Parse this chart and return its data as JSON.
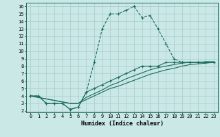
{
  "xlabel": "Humidex (Indice chaleur)",
  "xlim": [
    -0.5,
    23.5
  ],
  "ylim": [
    1.8,
    16.5
  ],
  "xticks": [
    0,
    1,
    2,
    3,
    4,
    5,
    6,
    7,
    8,
    9,
    10,
    11,
    12,
    13,
    14,
    15,
    16,
    17,
    18,
    19,
    20,
    21,
    22,
    23
  ],
  "yticks": [
    2,
    3,
    4,
    5,
    6,
    7,
    8,
    9,
    10,
    11,
    12,
    13,
    14,
    15,
    16
  ],
  "bg_color": "#c9e8e6",
  "line_color": "#1a6b5a",
  "grid_color": "#a8ccc8",
  "line1_x": [
    0,
    1,
    2,
    3,
    4,
    5,
    6,
    7,
    8,
    9,
    10,
    11,
    12,
    13,
    14,
    15,
    16,
    17,
    18,
    19,
    20,
    21,
    22,
    23
  ],
  "line1_y": [
    4,
    4,
    3,
    3,
    3,
    2.2,
    2.5,
    4.5,
    8.5,
    13,
    15,
    15,
    15.5,
    16,
    14.5,
    14.8,
    13,
    11,
    9,
    8.5,
    8.5,
    8.5,
    8.5,
    8.5
  ],
  "line2_x": [
    0,
    1,
    2,
    3,
    4,
    5,
    6,
    7,
    8,
    9,
    10,
    11,
    12,
    13,
    14,
    15,
    16,
    17,
    18,
    19,
    20,
    21,
    22,
    23
  ],
  "line2_y": [
    4,
    4,
    3,
    3,
    3,
    2.2,
    2.5,
    4.5,
    5,
    5.5,
    6,
    6.5,
    7,
    7.5,
    8,
    8,
    8,
    8.5,
    8.5,
    8.5,
    8.5,
    8.5,
    8.5,
    8.5
  ],
  "line3_x": [
    0,
    5,
    6,
    7,
    8,
    9,
    10,
    11,
    12,
    13,
    14,
    15,
    16,
    17,
    18,
    19,
    20,
    21,
    22,
    23
  ],
  "line3_y": [
    4,
    3,
    3,
    3.5,
    4,
    4.5,
    5,
    5.3,
    5.7,
    6.1,
    6.5,
    6.9,
    7.2,
    7.5,
    7.7,
    8,
    8.2,
    8.3,
    8.4,
    8.5
  ],
  "line4_x": [
    0,
    5,
    6,
    7,
    8,
    9,
    10,
    11,
    12,
    13,
    14,
    15,
    16,
    17,
    18,
    19,
    20,
    21,
    22,
    23
  ],
  "line4_y": [
    4,
    3,
    3,
    3.8,
    4.3,
    4.8,
    5.4,
    5.8,
    6.3,
    6.7,
    7.1,
    7.5,
    7.8,
    8.0,
    8.2,
    8.4,
    8.5,
    8.5,
    8.6,
    8.6
  ]
}
